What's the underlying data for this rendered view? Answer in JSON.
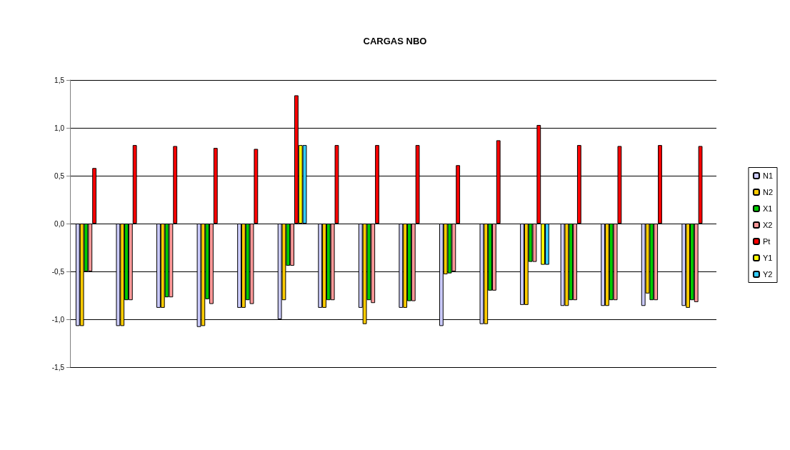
{
  "chart_data": {
    "type": "bar",
    "title": "CARGAS NBO",
    "categories": [
      null,
      null,
      null,
      null,
      null,
      null,
      null,
      null,
      null,
      null,
      null,
      null,
      null,
      null,
      null,
      null
    ],
    "series": [
      {
        "name": "N1",
        "color": "#ccccff",
        "values": [
          -1.07,
          -1.07,
          -0.88,
          -1.08,
          -0.88,
          -1.0,
          -0.88,
          -0.88,
          -0.88,
          -1.07,
          -1.05,
          -0.85,
          -0.86,
          -0.86,
          -0.86,
          -0.86
        ]
      },
      {
        "name": "N2",
        "color": "#ffcc00",
        "values": [
          -1.07,
          -1.07,
          -0.88,
          -1.07,
          -0.88,
          -0.8,
          -0.88,
          -1.05,
          -0.88,
          -0.53,
          -1.05,
          -0.85,
          -0.86,
          -0.86,
          -0.73,
          -0.88
        ]
      },
      {
        "name": "X1",
        "color": "#00cc00",
        "values": [
          -0.5,
          -0.8,
          -0.77,
          -0.79,
          -0.8,
          -0.44,
          -0.8,
          -0.8,
          -0.81,
          -0.52,
          -0.7,
          -0.4,
          -0.8,
          -0.8,
          -0.8,
          -0.8
        ]
      },
      {
        "name": "X2",
        "color": "#ff9999",
        "values": [
          -0.5,
          -0.8,
          -0.77,
          -0.84,
          -0.84,
          -0.44,
          -0.8,
          -0.83,
          -0.81,
          -0.5,
          -0.7,
          -0.4,
          -0.8,
          -0.8,
          -0.8,
          -0.82
        ]
      },
      {
        "name": "Pt",
        "color": "#ff0000",
        "values": [
          0.58,
          0.82,
          0.81,
          0.79,
          0.78,
          1.34,
          0.82,
          0.82,
          0.82,
          0.61,
          0.87,
          1.03,
          0.82,
          0.81,
          0.82,
          0.81
        ]
      },
      {
        "name": "Y1",
        "color": "#ffff00",
        "values": [
          null,
          null,
          null,
          null,
          null,
          0.82,
          null,
          null,
          null,
          null,
          null,
          -0.43,
          null,
          null,
          null,
          null
        ]
      },
      {
        "name": "Y2",
        "color": "#33ccff",
        "values": [
          null,
          null,
          null,
          null,
          null,
          0.82,
          null,
          null,
          null,
          null,
          null,
          -0.43,
          null,
          null,
          null,
          null
        ]
      }
    ],
    "ylim": [
      -1.5,
      1.5
    ],
    "yticks": [
      {
        "value": -1.5,
        "label": "-1,5"
      },
      {
        "value": -1,
        "label": "-1,0"
      },
      {
        "value": -0.5,
        "label": "-0,5"
      },
      {
        "value": 0,
        "label": "0,0"
      },
      {
        "value": 0.5,
        "label": "0,5"
      },
      {
        "value": 1,
        "label": "1,0"
      },
      {
        "value": 1.5,
        "label": "1,5"
      }
    ],
    "grid": "y",
    "legend": "right"
  }
}
